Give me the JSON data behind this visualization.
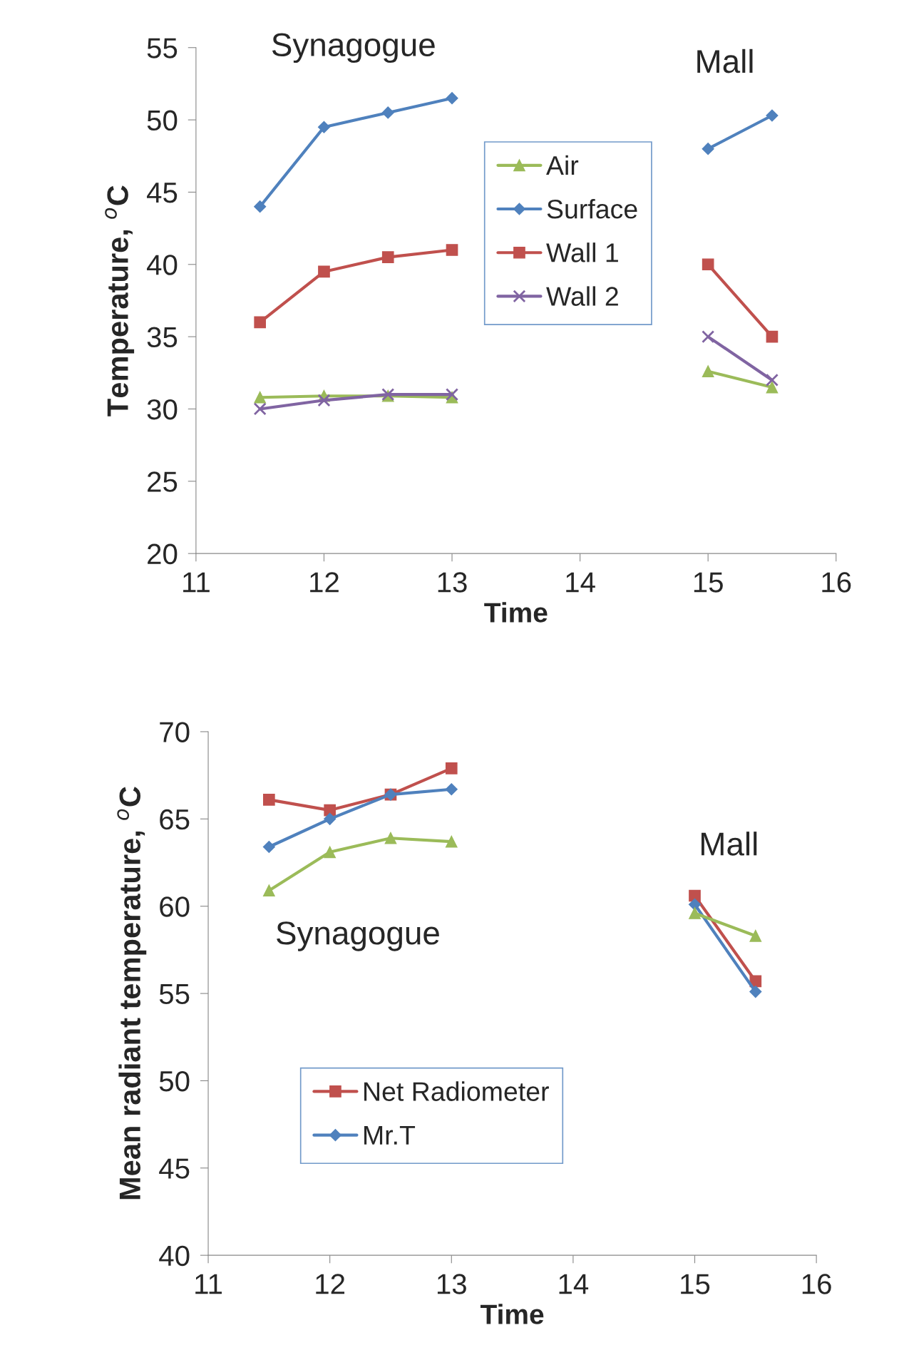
{
  "chart_data": [
    {
      "type": "line",
      "xlabel": "Time",
      "ylabel": "Temperature, $^{o}$C",
      "x": [
        11.5,
        12,
        12.5,
        13,
        14,
        15,
        15.5
      ],
      "xlim": [
        11,
        16
      ],
      "xticks": [
        11,
        12,
        13,
        14,
        15,
        16
      ],
      "ylim": [
        20,
        55
      ],
      "yticks": [
        20,
        25,
        30,
        35,
        40,
        45,
        50,
        55
      ],
      "grid": false,
      "legend": "top",
      "annotations": [
        "Synagogue",
        "Mall"
      ],
      "series": [
        {
          "name": "Air",
          "color": "#9bbb59",
          "marker": "triangle",
          "values": [
            30.8,
            30.9,
            30.9,
            30.8,
            null,
            32.6,
            31.5
          ]
        },
        {
          "name": "Surface",
          "color": "#4f81bd",
          "marker": "diamond",
          "values": [
            44.0,
            49.5,
            50.5,
            51.5,
            null,
            48.0,
            50.3
          ]
        },
        {
          "name": "Wall 1",
          "color": "#c0504d",
          "marker": "square",
          "values": [
            36.0,
            39.5,
            40.5,
            41.0,
            null,
            40.0,
            35.0
          ]
        },
        {
          "name": "Wall 2",
          "color": "#8064a2",
          "marker": "cross",
          "values": [
            30.0,
            30.6,
            31.0,
            31.0,
            null,
            35.0,
            32.0
          ]
        }
      ]
    },
    {
      "type": "line",
      "xlabel": "Time",
      "ylabel": "Mean radiant temperature, $^{o}$C",
      "x": [
        11.5,
        12,
        12.5,
        13,
        14,
        15,
        15.5
      ],
      "xlim": [
        11,
        16
      ],
      "xticks": [
        11,
        12,
        13,
        14,
        15,
        16
      ],
      "ylim": [
        40,
        70
      ],
      "yticks": [
        40,
        45,
        50,
        55,
        60,
        65,
        70
      ],
      "grid": false,
      "legend": "bottom left",
      "annotations": [
        "Synagogue",
        "Mall"
      ],
      "series": [
        {
          "name": "Net Radiometer",
          "color": "#c0504d",
          "marker": "square",
          "values": [
            66.1,
            65.5,
            66.4,
            67.9,
            null,
            60.6,
            55.7
          ]
        },
        {
          "name": "Mr.T",
          "color": "#4f81bd",
          "marker": "diamond",
          "values": [
            63.4,
            65.0,
            66.4,
            66.7,
            null,
            60.1,
            55.1
          ]
        },
        {
          "color": "#9bbb59",
          "marker": "triangle",
          "values": [
            60.9,
            63.1,
            63.9,
            63.7,
            null,
            59.6,
            58.3
          ]
        }
      ]
    }
  ]
}
